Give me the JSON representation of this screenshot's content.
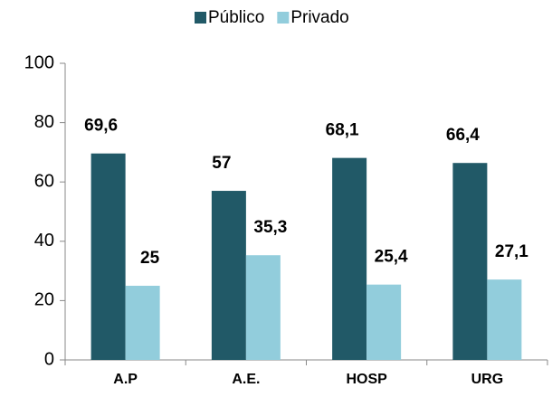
{
  "chart_data": {
    "type": "bar",
    "categories": [
      "A.P",
      "A.E.",
      "HOSP",
      "URG"
    ],
    "series": [
      {
        "name": "Público",
        "color": "#215967",
        "values": [
          69.6,
          57,
          68.1,
          66.4
        ],
        "value_labels": [
          "69,6",
          "57",
          "68,1",
          "66,4"
        ]
      },
      {
        "name": "Privado",
        "color": "#92cddc",
        "values": [
          25,
          35.3,
          25.4,
          27.1
        ],
        "value_labels": [
          "25",
          "35,3",
          "25,4",
          "27,1"
        ]
      }
    ],
    "ylim": [
      0,
      100
    ],
    "yticks": [
      0,
      20,
      40,
      60,
      80,
      100
    ],
    "legend": "top"
  }
}
